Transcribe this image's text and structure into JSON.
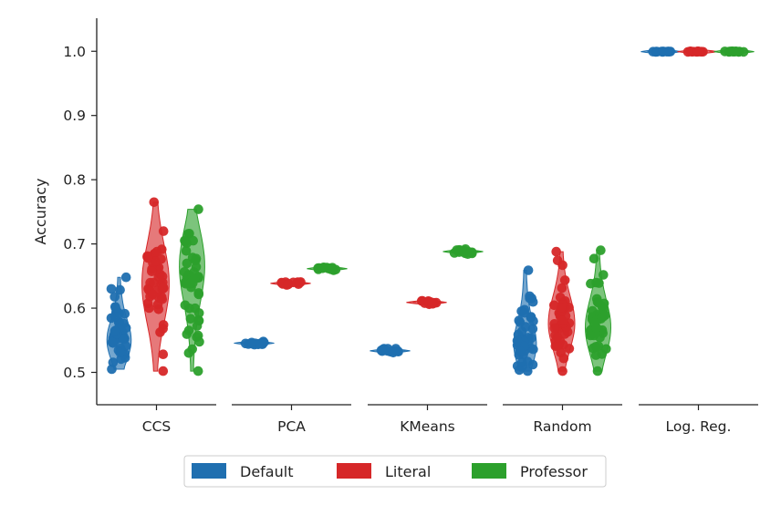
{
  "chart_data": {
    "type": "violin",
    "title": "",
    "xlabel": "",
    "ylabel": "Accuracy",
    "ylim": [
      0.45,
      1.05
    ],
    "yticks": [
      0.5,
      0.6,
      0.7,
      0.8,
      0.9,
      1.0
    ],
    "ytick_labels": [
      "0.5",
      "0.6",
      "0.7",
      "0.8",
      "0.9",
      "1.0"
    ],
    "grid": false,
    "legend_position": "bottom-center",
    "categories": [
      "CCS",
      "PCA",
      "KMeans",
      "Random",
      "Log. Reg."
    ],
    "series": [
      {
        "name": "Default",
        "color": "#1f6fb0",
        "groups": [
          {
            "min": 0.505,
            "max": 0.648,
            "peak": 0.54
          },
          {
            "min": 0.543,
            "max": 0.548,
            "peak": 0.546
          },
          {
            "min": 0.53,
            "max": 0.537,
            "peak": 0.534
          },
          {
            "min": 0.502,
            "max": 0.659,
            "peak": 0.53
          },
          {
            "min": 0.999,
            "max": 1.0,
            "peak": 1.0
          }
        ]
      },
      {
        "name": "Literal",
        "color": "#d62728",
        "groups": [
          {
            "min": 0.502,
            "max": 0.765,
            "peak": 0.64
          },
          {
            "min": 0.636,
            "max": 0.641,
            "peak": 0.638
          },
          {
            "min": 0.606,
            "max": 0.612,
            "peak": 0.609
          },
          {
            "min": 0.502,
            "max": 0.688,
            "peak": 0.57
          },
          {
            "min": 0.999,
            "max": 1.0,
            "peak": 1.0
          }
        ]
      },
      {
        "name": "Professor",
        "color": "#2ca02c",
        "groups": [
          {
            "min": 0.502,
            "max": 0.754,
            "peak": 0.68
          },
          {
            "min": 0.659,
            "max": 0.664,
            "peak": 0.662
          },
          {
            "min": 0.684,
            "max": 0.692,
            "peak": 0.688
          },
          {
            "min": 0.502,
            "max": 0.69,
            "peak": 0.56
          },
          {
            "min": 0.999,
            "max": 1.0,
            "peak": 1.0
          }
        ]
      }
    ]
  }
}
